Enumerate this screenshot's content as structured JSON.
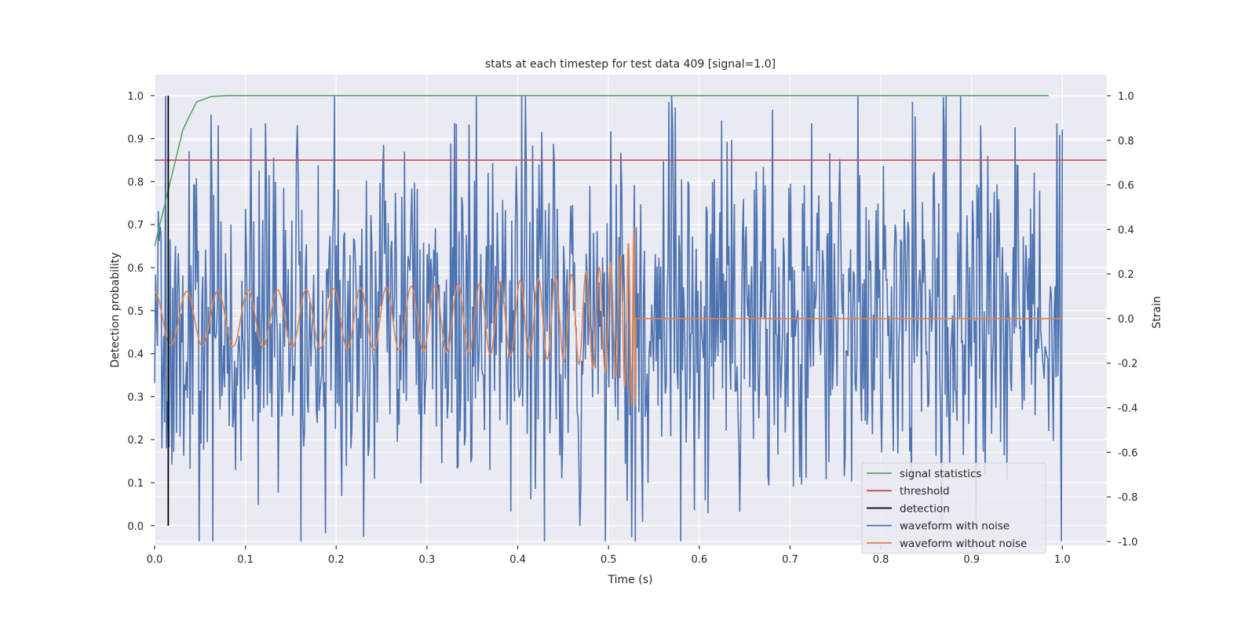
{
  "chart_data": {
    "type": "line",
    "title": "stats at each timestep for test data 409 [signal=1.0]",
    "xlabel": "Time (s)",
    "ylabel": "Detection probability",
    "ylabel_right": "Strain",
    "xlim": [
      0.0,
      1.049
    ],
    "ylim": [
      -0.046,
      1.049
    ],
    "ylim_right": [
      -1.018,
      1.095
    ],
    "xticks": [
      "0.0",
      "0.1",
      "0.2",
      "0.3",
      "0.4",
      "0.5",
      "0.6",
      "0.7",
      "0.8",
      "0.9",
      "1.0"
    ],
    "yticks": [
      "0.0",
      "0.1",
      "0.2",
      "0.3",
      "0.4",
      "0.5",
      "0.6",
      "0.7",
      "0.8",
      "0.9",
      "1.0"
    ],
    "yticks_right": [
      "-1.0",
      "-0.8",
      "-0.6",
      "-0.4",
      "-0.2",
      "0.0",
      "0.2",
      "0.4",
      "0.6",
      "0.8",
      "1.0"
    ],
    "grid": true,
    "legend_position": "lower-right",
    "colors": {
      "signal": "#55a868",
      "threshold": "#c44e52",
      "detection": "#000000",
      "noisy": "#4c72b0",
      "clean": "#dd8452",
      "bg": "#eaeaf2"
    },
    "legend": [
      "signal statistics",
      "threshold",
      "detection",
      "waveform with noise",
      "waveform without noise"
    ],
    "series": [
      {
        "name": "signal statistics",
        "axis": "left",
        "x": [
          0.0,
          0.015,
          0.031,
          0.046,
          0.062,
          0.08,
          0.2,
          0.5,
          0.985
        ],
        "y": [
          0.65,
          0.78,
          0.92,
          0.985,
          0.998,
          1.0,
          1.0,
          1.0,
          1.0
        ]
      },
      {
        "name": "threshold",
        "axis": "left",
        "x": [
          0.0,
          1.049
        ],
        "y": [
          0.85,
          0.85
        ]
      },
      {
        "name": "detection",
        "axis": "left",
        "x": [
          0.015,
          0.015
        ],
        "y": [
          0.0,
          1.0
        ]
      },
      {
        "name": "waveform with noise",
        "axis": "right",
        "t_range": [
          0.0,
          1.0
        ],
        "n_samples": 1000,
        "noise_sigma": 0.42,
        "seed": 409,
        "clip": 1.0
      },
      {
        "name": "waveform without noise",
        "axis": "right",
        "t_range": [
          0.0,
          1.0
        ],
        "n_samples": 2000,
        "f0_hz": 28,
        "coalescence_time": 0.53,
        "amplitude0": 0.12,
        "max_amplitude": 0.42
      }
    ]
  }
}
